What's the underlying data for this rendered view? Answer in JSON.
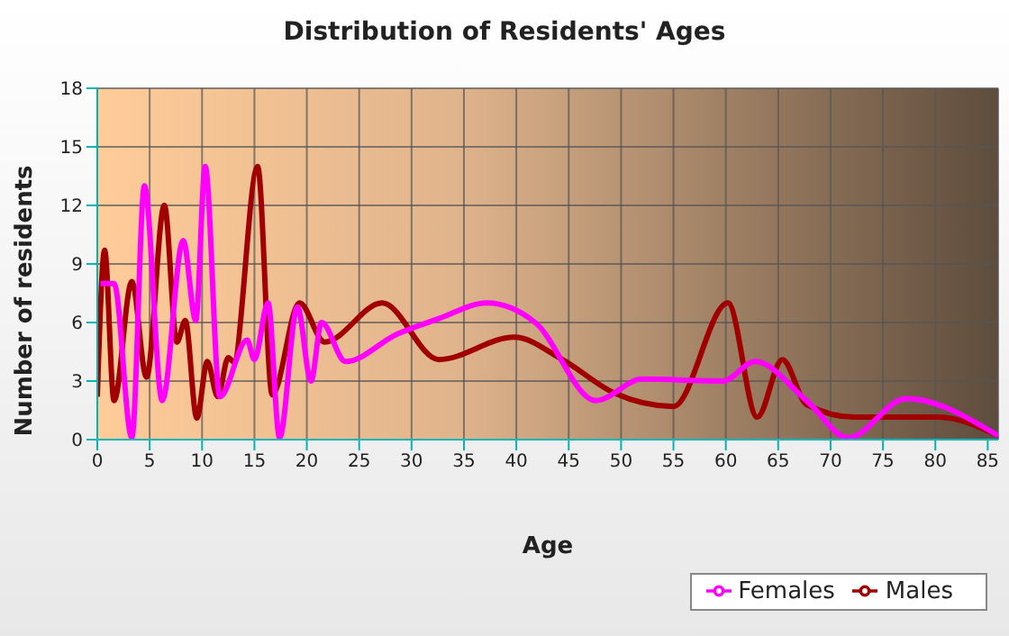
{
  "chart_data": {
    "type": "line",
    "title": "Distribution of Residents' Ages",
    "xlabel": "Age",
    "ylabel": "Number of residents",
    "xlim": [
      0,
      86
    ],
    "xticks": [
      0,
      5,
      10,
      15,
      20,
      25,
      30,
      35,
      40,
      45,
      50,
      55,
      60,
      65,
      70,
      75,
      80,
      85
    ],
    "ylim": [
      0,
      18
    ],
    "yticks": [
      0,
      3,
      6,
      9,
      12,
      15,
      18
    ],
    "grid": true,
    "legend": "bottom right",
    "marker": "none",
    "line_style": "solid",
    "series": [
      {
        "name": "Males",
        "color": "#a00000",
        "x": [
          0,
          0.7,
          1.6,
          3.3,
          4.7,
          6.4,
          7.6,
          8.4,
          9.5,
          10.5,
          11.5,
          12.5,
          13,
          15.3,
          16.7,
          19.3,
          21.7,
          27.2,
          32.6,
          39.8,
          44.4,
          49.3,
          55,
          60.2,
          63,
          65.4,
          67.7,
          72.3,
          80.3,
          86
        ],
        "values": [
          2.2,
          9.7,
          2,
          8.1,
          3.2,
          12,
          5,
          6.1,
          1.1,
          4,
          2.2,
          4.2,
          4,
          14,
          2.3,
          7,
          5,
          7,
          4.1,
          5.25,
          4.1,
          2.4,
          1.7,
          7,
          1.15,
          4.1,
          1.8,
          1.15,
          1.15,
          0.2
        ]
      },
      {
        "name": "Females",
        "color": "#ff00ff",
        "x": [
          0.3,
          1.6,
          3.3,
          4.5,
          6.2,
          8.2,
          9.4,
          10.3,
          11.7,
          14.3,
          15,
          16.3,
          17.4,
          19.1,
          20.4,
          21.4,
          23.7,
          28.6,
          32.6,
          37.2,
          41.8,
          47.6,
          52,
          59.7,
          62.8,
          67.7,
          71.7,
          77.2,
          86
        ],
        "values": [
          8,
          8,
          0.1,
          13,
          2,
          10.2,
          6.1,
          14,
          2.2,
          5.1,
          4.1,
          7,
          0.1,
          6.8,
          3,
          6,
          4,
          5.4,
          6.2,
          7,
          6,
          2,
          3.1,
          3,
          4,
          2,
          0.1,
          2.1,
          0.2
        ]
      }
    ]
  }
}
